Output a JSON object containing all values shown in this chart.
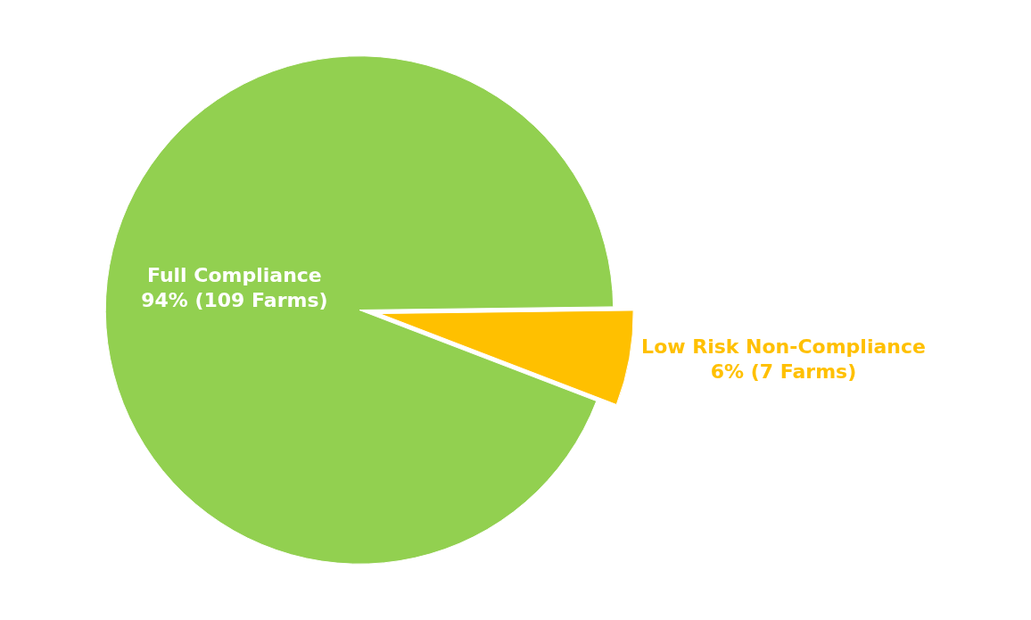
{
  "chart_data": {
    "type": "pie",
    "categories": [
      "Full Compliance",
      "Low Risk Non-Compliance"
    ],
    "values": [
      109,
      7
    ],
    "value_labels": [
      "94% (109 Farms)",
      "6% (7 Farms)"
    ],
    "colors": [
      "#92d050",
      "#ffc000"
    ],
    "legend": false
  }
}
